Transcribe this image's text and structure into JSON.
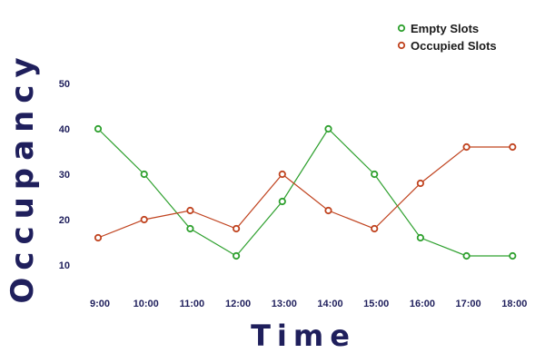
{
  "chart_data": {
    "type": "line",
    "title": "",
    "xlabel": "Time",
    "ylabel": "Occupancy",
    "categories": [
      "9:00",
      "10:00",
      "11:00",
      "12:00",
      "13:00",
      "14:00",
      "15:00",
      "16:00",
      "17:00",
      "18:00"
    ],
    "ylim": [
      10,
      50
    ],
    "yticks": [
      "10",
      "20",
      "30",
      "40",
      "50"
    ],
    "grid": false,
    "legend_position": "top-right",
    "series": [
      {
        "name": "Empty Slots",
        "color": "#2ea02e",
        "values": [
          40,
          30,
          18,
          12,
          24,
          40,
          30,
          16,
          12,
          12
        ]
      },
      {
        "name": "Occupied Slots",
        "color": "#c0431f",
        "values": [
          16,
          20,
          22,
          18,
          30,
          22,
          18,
          28,
          36,
          36
        ]
      }
    ]
  }
}
